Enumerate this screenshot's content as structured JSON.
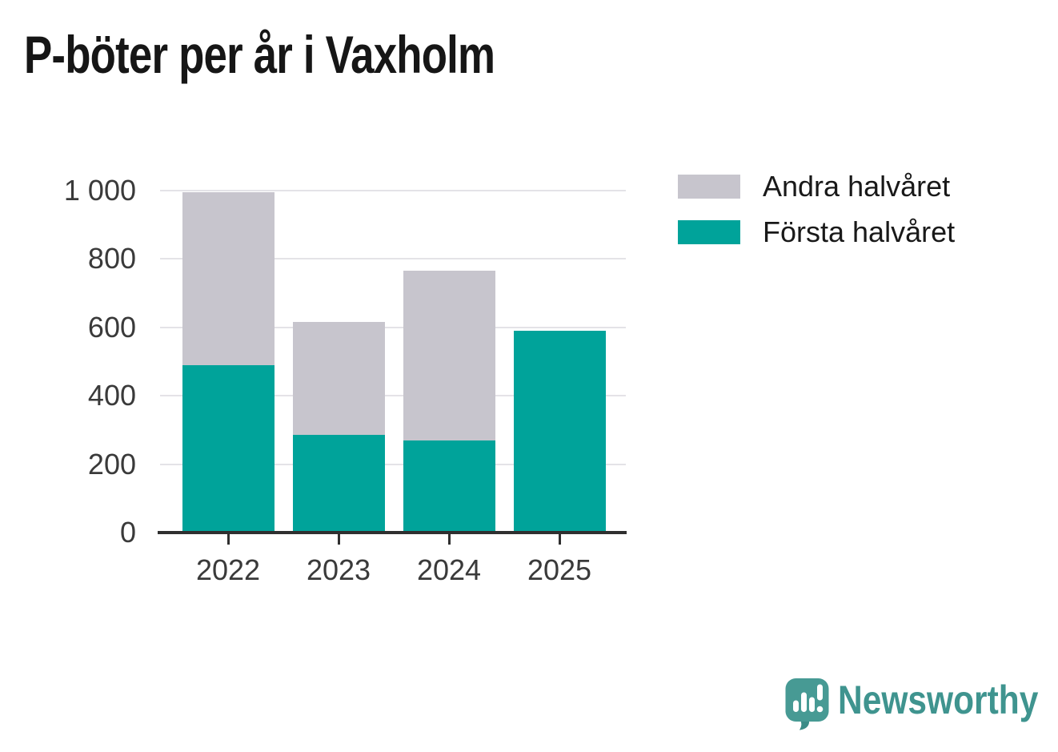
{
  "title": "P-böter per år i Vaxholm",
  "colors": {
    "first_half": "#00A39A",
    "second_half": "#C7C5CD",
    "grid": "#E4E3E7",
    "axis": "#2F2F2F",
    "axis_text": "#3A3A3A",
    "title_text": "#161616",
    "brand_teal": "#3F948F",
    "brand_icon_teal": "#479A94"
  },
  "chart_data": {
    "type": "bar",
    "stacked": true,
    "title": "P-böter per år i Vaxholm",
    "categories": [
      "2022",
      "2023",
      "2024",
      "2025"
    ],
    "series": [
      {
        "name": "Första halvåret",
        "color": "#00A39A",
        "values": [
          490,
          285,
          270,
          590
        ]
      },
      {
        "name": "Andra halvåret",
        "color": "#C7C5CD",
        "values": [
          505,
          330,
          495,
          0
        ]
      }
    ],
    "totals": [
      995,
      615,
      765,
      590
    ],
    "xlabel": "",
    "ylabel": "",
    "ylim": [
      0,
      1000
    ],
    "yticks": [
      0,
      200,
      400,
      600,
      800,
      1000
    ],
    "ytick_labels": [
      "0",
      "200",
      "400",
      "600",
      "800",
      "1 000"
    ],
    "grid": true,
    "legend_position": "top-right"
  },
  "legend": {
    "items": [
      {
        "label": "Andra halvåret",
        "color": "#C7C5CD"
      },
      {
        "label": "Första halvåret",
        "color": "#00A39A"
      }
    ]
  },
  "branding": {
    "name": "Newsworthy",
    "icon": "newsworthy-speech-bubble-chart-icon"
  }
}
